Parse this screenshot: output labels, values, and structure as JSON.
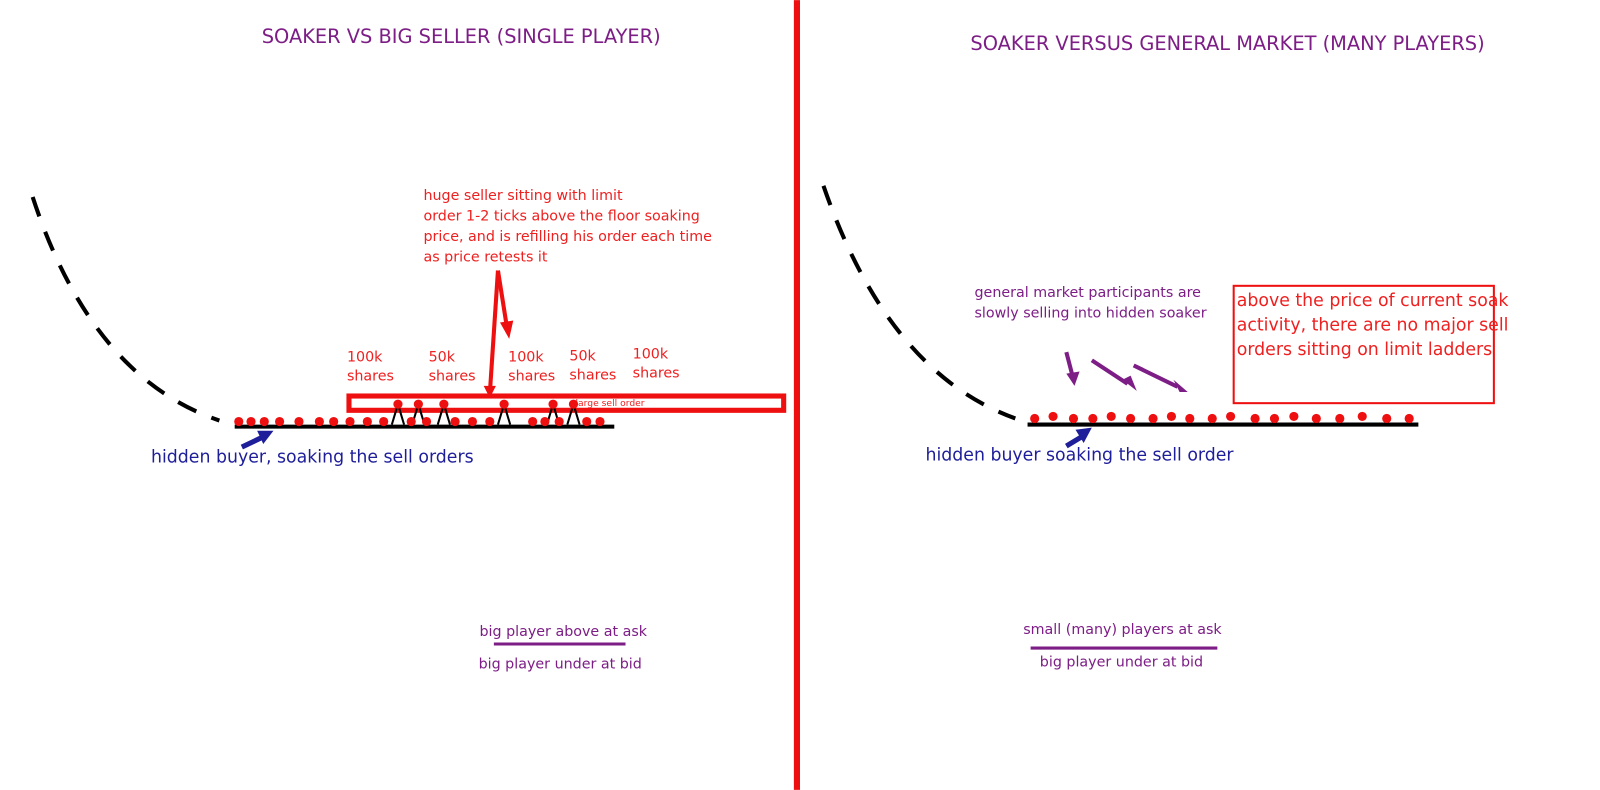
{
  "left": {
    "title": "SOAKER VS BIG SELLER (SINGLE PLAYER)",
    "seller_note": [
      "huge seller sitting with limit",
      "order 1-2 ticks above the floor soaking",
      "price, and is refilling his order each time",
      "as price retests it"
    ],
    "share_labels": [
      {
        "size": "100k",
        "unit": "shares"
      },
      {
        "size": "50k",
        "unit": "shares"
      },
      {
        "size": "100k",
        "unit": "shares"
      },
      {
        "size": "50k",
        "unit": "shares"
      },
      {
        "size": "100k",
        "unit": "shares"
      }
    ],
    "large_order_label": "large sell order",
    "buyer_label": "hidden buyer, soaking the sell orders",
    "ask_label": "big player above at ask",
    "bid_label": "big player under at bid"
  },
  "right": {
    "title": "SOAKER VERSUS GENERAL MARKET (MANY PLAYERS)",
    "participants_note": [
      "general market participants are",
      "slowly selling into hidden soaker"
    ],
    "box_note": [
      "above the price of current soak",
      "activity, there are no major sell",
      "orders sitting on limit ladders"
    ],
    "buyer_label": "hidden buyer soaking the sell order",
    "ask_label": "small (many) players at ask",
    "bid_label": "big player under at bid"
  }
}
